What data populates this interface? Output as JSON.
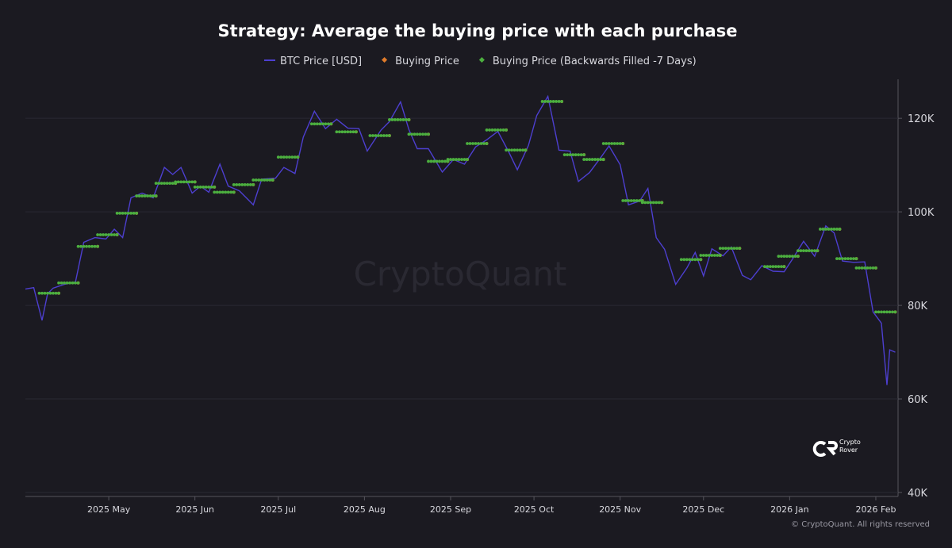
{
  "chart_data": {
    "type": "line",
    "title": "Strategy: Average the buying price with each purchase",
    "watermark": "CryptoQuant",
    "brand": "Crypto Rover",
    "copyright": "© CryptoQuant. All rights reserved",
    "xlim": [
      "2025-04-01",
      "2026-02-09"
    ],
    "xticks": [
      {
        "value": "2025-05-01",
        "label": "2025 May"
      },
      {
        "value": "2025-06-01",
        "label": "2025 Jun"
      },
      {
        "value": "2025-07-01",
        "label": "2025 Jul"
      },
      {
        "value": "2025-08-01",
        "label": "2025 Aug"
      },
      {
        "value": "2025-09-01",
        "label": "2025 Sep"
      },
      {
        "value": "2025-10-01",
        "label": "2025 Oct"
      },
      {
        "value": "2025-11-01",
        "label": "2025 Nov"
      },
      {
        "value": "2025-12-01",
        "label": "2025 Dec"
      },
      {
        "value": "2026-01-01",
        "label": "2026 Jan"
      },
      {
        "value": "2026-02-01",
        "label": "2026 Feb"
      }
    ],
    "ylim": [
      40000,
      128000
    ],
    "yticks": [
      {
        "value": 40000,
        "label": "40K"
      },
      {
        "value": 60000,
        "label": "60K"
      },
      {
        "value": 80000,
        "label": "80K"
      },
      {
        "value": 100000,
        "label": "100K"
      },
      {
        "value": 120000,
        "label": "120K"
      }
    ],
    "grid": true,
    "series": [
      {
        "name": "BTC Price [USD]",
        "color": "#4d3fd0",
        "kind": "line",
        "x": [
          "2025-04-01",
          "2025-04-04",
          "2025-04-07",
          "2025-04-09",
          "2025-04-11",
          "2025-04-15",
          "2025-04-19",
          "2025-04-22",
          "2025-04-26",
          "2025-04-30",
          "2025-05-03",
          "2025-05-06",
          "2025-05-09",
          "2025-05-13",
          "2025-05-17",
          "2025-05-21",
          "2025-05-24",
          "2025-05-27",
          "2025-05-31",
          "2025-06-03",
          "2025-06-06",
          "2025-06-10",
          "2025-06-13",
          "2025-06-17",
          "2025-06-22",
          "2025-06-25",
          "2025-06-30",
          "2025-07-03",
          "2025-07-07",
          "2025-07-10",
          "2025-07-14",
          "2025-07-18",
          "2025-07-22",
          "2025-07-26",
          "2025-07-30",
          "2025-08-02",
          "2025-08-07",
          "2025-08-10",
          "2025-08-14",
          "2025-08-17",
          "2025-08-20",
          "2025-08-24",
          "2025-08-29",
          "2025-09-02",
          "2025-09-06",
          "2025-09-10",
          "2025-09-14",
          "2025-09-18",
          "2025-09-22",
          "2025-09-25",
          "2025-09-29",
          "2025-10-02",
          "2025-10-06",
          "2025-10-10",
          "2025-10-14",
          "2025-10-17",
          "2025-10-21",
          "2025-10-25",
          "2025-10-28",
          "2025-11-01",
          "2025-11-04",
          "2025-11-08",
          "2025-11-11",
          "2025-11-14",
          "2025-11-17",
          "2025-11-21",
          "2025-11-25",
          "2025-11-28",
          "2025-12-01",
          "2025-12-04",
          "2025-12-08",
          "2025-12-11",
          "2025-12-15",
          "2025-12-18",
          "2025-12-22",
          "2025-12-26",
          "2025-12-30",
          "2026-01-02",
          "2026-01-06",
          "2026-01-10",
          "2026-01-14",
          "2026-01-17",
          "2026-01-20",
          "2026-01-24",
          "2026-01-28",
          "2026-01-31",
          "2026-02-03",
          "2026-02-05",
          "2026-02-06",
          "2026-02-08"
        ],
        "values": [
          83500,
          83800,
          76800,
          82500,
          83700,
          84500,
          85000,
          93500,
          94500,
          94200,
          96300,
          94500,
          103000,
          104000,
          103000,
          109500,
          108000,
          109500,
          104000,
          105500,
          104200,
          110200,
          105500,
          104500,
          101500,
          107000,
          107200,
          109500,
          108200,
          116000,
          121500,
          117800,
          119800,
          117900,
          117800,
          113000,
          117500,
          119300,
          123500,
          117600,
          113500,
          113500,
          108500,
          111200,
          110200,
          113900,
          115400,
          117200,
          112700,
          109000,
          114200,
          120600,
          124700,
          113200,
          113000,
          106500,
          108400,
          111600,
          114100,
          110100,
          101500,
          102300,
          105000,
          94500,
          92000,
          84500,
          88000,
          91300,
          86300,
          92100,
          90600,
          92500,
          86400,
          85500,
          88500,
          87300,
          87200,
          89900,
          93700,
          90500,
          97000,
          95500,
          89500,
          89200,
          89300,
          78600,
          76200,
          63000,
          70500,
          70000
        ]
      },
      {
        "name": "Buying Price",
        "color": "#e07b2a",
        "kind": "point",
        "x": [
          "2025-04-13",
          "2025-04-20",
          "2025-04-27",
          "2025-05-04",
          "2025-05-11",
          "2025-05-18",
          "2025-05-25",
          "2025-06-01",
          "2025-06-08",
          "2025-06-15",
          "2025-06-22",
          "2025-06-29",
          "2025-07-08",
          "2025-07-20",
          "2025-07-29",
          "2025-08-10",
          "2025-08-17",
          "2025-08-24",
          "2025-08-31",
          "2025-09-07",
          "2025-09-14",
          "2025-09-21",
          "2025-09-28",
          "2025-10-11",
          "2025-10-19",
          "2025-10-26",
          "2025-11-02",
          "2025-11-09",
          "2025-11-16",
          "2025-11-30",
          "2025-12-07",
          "2025-12-14",
          "2025-12-30",
          "2026-01-04",
          "2026-01-11",
          "2026-01-19",
          "2026-01-25",
          "2026-02-01",
          "2026-02-08"
        ],
        "values": [
          82600,
          84800,
          92600,
          95100,
          99700,
          103400,
          106100,
          106400,
          105300,
          104200,
          105800,
          106800,
          111700,
          118800,
          117100,
          116300,
          119700,
          116600,
          110800,
          111200,
          114600,
          117500,
          113200,
          123600,
          112200,
          111200,
          114600,
          102400,
          102000,
          89800,
          90700,
          92200,
          88300,
          90500,
          91700,
          96300,
          90000,
          88000,
          78600
        ]
      },
      {
        "name": "Buying Price (Backwards Filled -7 Days)",
        "color": "#4caf3f",
        "kind": "filled",
        "x": [
          "2025-04-13",
          "2025-04-20",
          "2025-04-27",
          "2025-05-04",
          "2025-05-11",
          "2025-05-18",
          "2025-05-25",
          "2025-06-01",
          "2025-06-08",
          "2025-06-15",
          "2025-06-22",
          "2025-06-29",
          "2025-07-08",
          "2025-07-20",
          "2025-07-29",
          "2025-08-10",
          "2025-08-17",
          "2025-08-24",
          "2025-08-31",
          "2025-09-07",
          "2025-09-14",
          "2025-09-21",
          "2025-09-28",
          "2025-10-11",
          "2025-10-19",
          "2025-10-26",
          "2025-11-02",
          "2025-11-09",
          "2025-11-16",
          "2025-11-30",
          "2025-12-07",
          "2025-12-14",
          "2025-12-30",
          "2026-01-04",
          "2026-01-11",
          "2026-01-19",
          "2026-01-25",
          "2026-02-01",
          "2026-02-08"
        ],
        "values": [
          82600,
          84800,
          92600,
          95100,
          99700,
          103400,
          106100,
          106400,
          105300,
          104200,
          105800,
          106800,
          111700,
          118800,
          117100,
          116300,
          119700,
          116600,
          110800,
          111200,
          114600,
          117500,
          113200,
          123600,
          112200,
          111200,
          114600,
          102400,
          102000,
          89800,
          90700,
          92200,
          88300,
          90500,
          91700,
          96300,
          90000,
          88000,
          78600
        ]
      }
    ]
  }
}
